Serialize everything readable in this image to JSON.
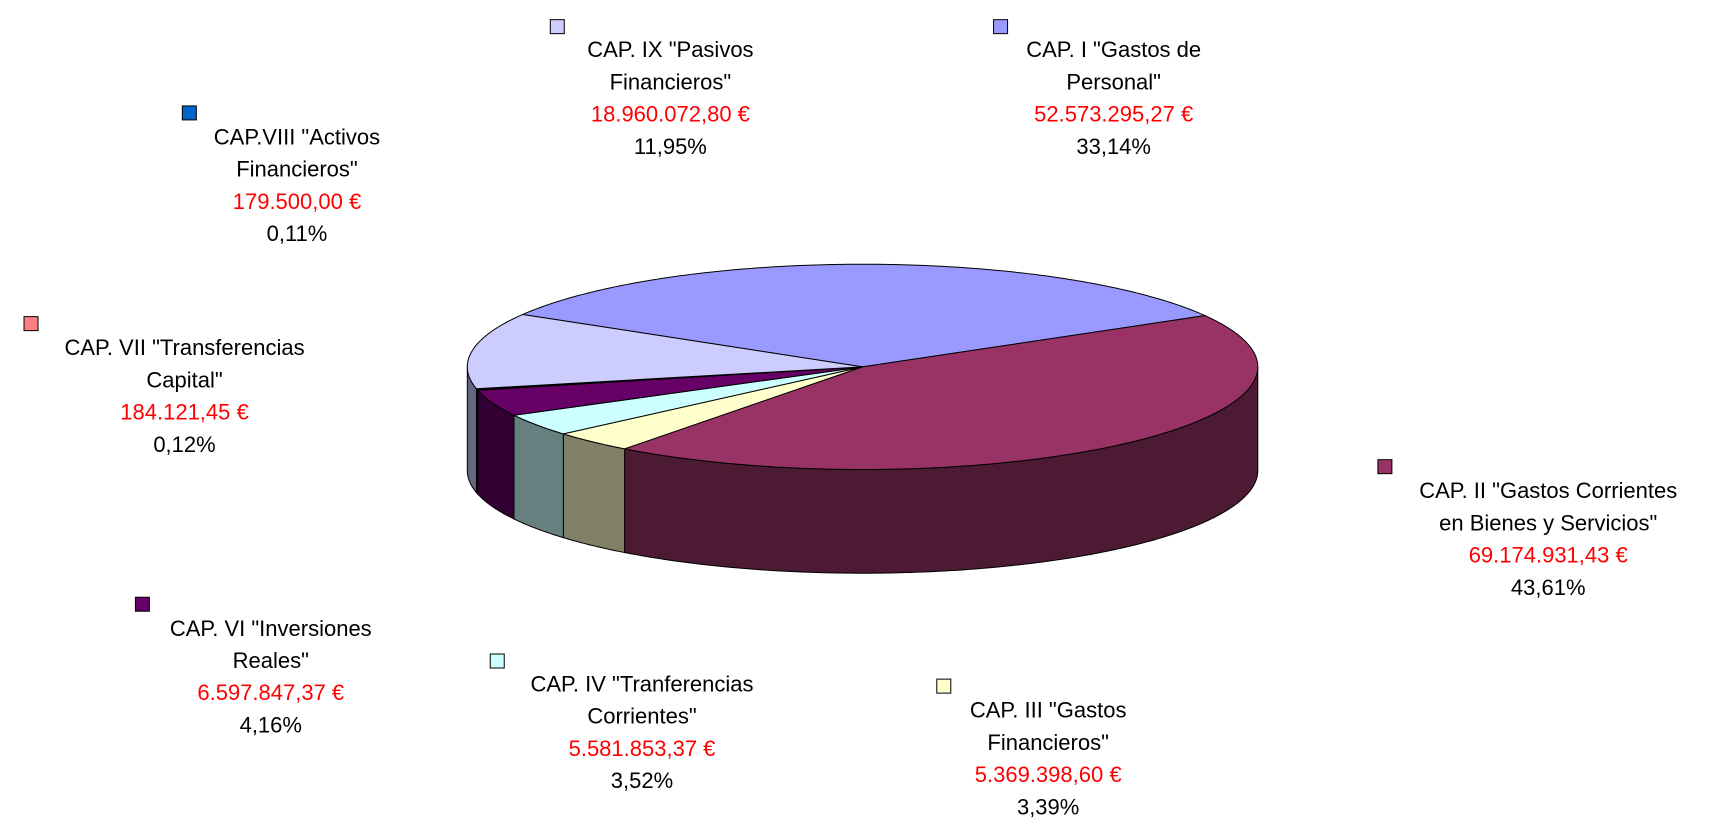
{
  "chart_data": {
    "type": "pie3d",
    "categories": [
      [
        "CAP. I \"Gastos de",
        "Personal\""
      ],
      [
        "CAP. II \"Gastos Corrientes",
        "en Bienes y Servicios\""
      ],
      [
        "CAP. III \"Gastos",
        "Financieros\""
      ],
      [
        "CAP. IV \"Tranferencias",
        "Corrientes\""
      ],
      [
        "CAP. VI \"Inversiones",
        "Reales\""
      ],
      [
        "CAP. VII \"Transferencias",
        "Capital\""
      ],
      [
        "CAP.VIII \"Activos",
        "Financieros\""
      ],
      [
        "CAP. IX \"Pasivos",
        "Financieros\""
      ]
    ],
    "values": [
      52573295.27,
      69174931.43,
      5369398.6,
      5581853.37,
      6597847.37,
      184121.45,
      179500.0,
      18960072.8
    ],
    "value_labels": [
      "52.573.295,27 €",
      "69.174.931,43 €",
      "5.369.398,60 €",
      "5.581.853,37 €",
      "6.597.847,37 €",
      "184.121,45 €",
      "179.500,00 €",
      "18.960.072,80 €"
    ],
    "percents": [
      33.14,
      43.61,
      3.39,
      3.52,
      4.16,
      0.12,
      0.11,
      11.95
    ],
    "percent_labels": [
      "33,14%",
      "43,61%",
      "3,39%",
      "3,52%",
      "4,16%",
      "0,12%",
      "0,11%",
      "11,95%"
    ],
    "colors": [
      "#9999ff",
      "#993366",
      "#ffffcc",
      "#ccffff",
      "#660066",
      "#ff8080",
      "#0066cc",
      "#ccccff"
    ]
  }
}
